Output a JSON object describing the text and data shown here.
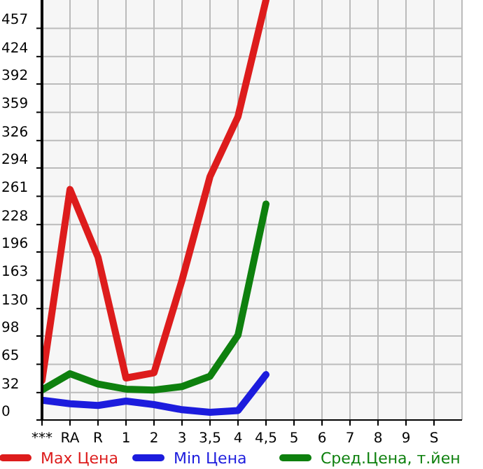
{
  "chart_data": {
    "type": "line",
    "categories": [
      "***",
      "RA",
      "R",
      "1",
      "2",
      "3",
      "3,5",
      "4",
      "4,5",
      "5",
      "6",
      "7",
      "8",
      "9",
      "S"
    ],
    "series": [
      {
        "name": "Max Цена",
        "color": "#dd1c1c",
        "values": [
          46,
          269,
          190,
          49,
          55,
          163,
          284,
          354,
          490,
          null,
          null,
          null,
          null,
          null,
          null
        ]
      },
      {
        "name": "Min Цена",
        "color": "#1c1cdd",
        "values": [
          23,
          19,
          17,
          22,
          18,
          12,
          9,
          11,
          53,
          null,
          null,
          null,
          null,
          null,
          null
        ]
      },
      {
        "name": "Сред.Цена, т.йен",
        "color": "#0e800e",
        "values": [
          35,
          54,
          42,
          36,
          35,
          39,
          51,
          99,
          252,
          null,
          null,
          null,
          null,
          null,
          null
        ]
      }
    ],
    "ylim": [
      0,
      490
    ],
    "yticks": [
      0,
      32,
      65,
      98,
      130,
      163,
      196,
      228,
      261,
      294,
      326,
      359,
      392,
      424,
      457
    ],
    "grid": true,
    "legend": "bottom",
    "marker": "none",
    "line_style": "solid"
  }
}
